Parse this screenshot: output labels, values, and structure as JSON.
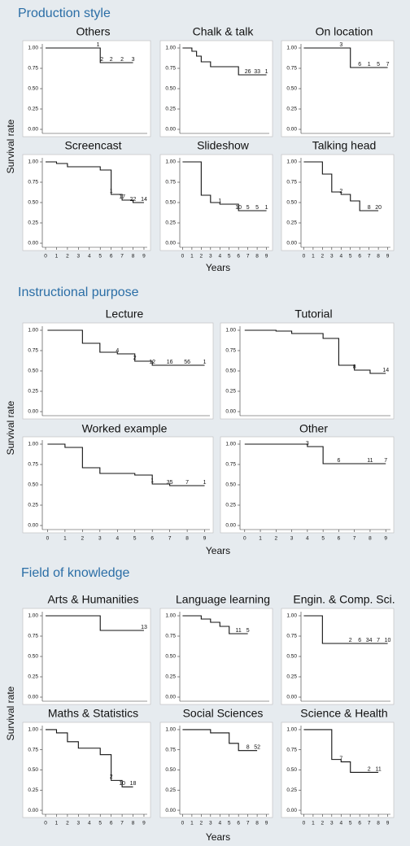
{
  "sections": [
    {
      "title": "Production style",
      "ylabel": "Survival rate",
      "xlabel": "Years"
    },
    {
      "title": "Instructional purpose",
      "ylabel": "Survival rate",
      "xlabel": "Years"
    },
    {
      "title": "Field of knowledge",
      "ylabel": "Survival rate",
      "xlabel": "Years"
    }
  ],
  "chart_data": [
    {
      "type": "step",
      "title": "Others",
      "x": [
        0,
        5,
        8
      ],
      "values": [
        1,
        0.82,
        0.82
      ],
      "censor_x": [
        4.8,
        5.15,
        6,
        7,
        8
      ],
      "censor_counts": [
        1,
        2,
        2,
        2,
        3
      ],
      "xlim": [
        -0.3,
        9.3
      ],
      "ylim": [
        -0.05,
        1.05
      ],
      "yticks": [
        {
          "value": 0,
          "label": "0.00"
        },
        {
          "value": 0.25,
          "label": "0.25"
        },
        {
          "value": 0.5,
          "label": "0.50"
        },
        {
          "value": 0.75,
          "label": "0.75"
        },
        {
          "value": 1,
          "label": "1.00"
        }
      ],
      "color": "#111111"
    },
    {
      "type": "step",
      "title": "Chalk & talk",
      "x": [
        0,
        1,
        1.5,
        2,
        3,
        6,
        9
      ],
      "values": [
        1,
        0.96,
        0.9,
        0.83,
        0.77,
        0.67,
        0.67
      ],
      "censor_x": [
        7,
        8,
        9
      ],
      "censor_counts": [
        26,
        33,
        1
      ],
      "xlim": [
        -0.3,
        9.3
      ],
      "ylim": [
        -0.05,
        1.05
      ],
      "yticks": [
        {
          "value": 0,
          "label": "0.00"
        },
        {
          "value": 0.25,
          "label": "0.25"
        },
        {
          "value": 0.5,
          "label": "0.50"
        },
        {
          "value": 0.75,
          "label": "0.75"
        },
        {
          "value": 1,
          "label": "1.00"
        }
      ],
      "color": "#111111"
    },
    {
      "type": "step",
      "title": "On location",
      "x": [
        0,
        5,
        9
      ],
      "values": [
        1,
        0.76,
        0.76
      ],
      "censor_x": [
        4,
        6,
        7,
        8,
        9
      ],
      "censor_counts": [
        3,
        6,
        1,
        5,
        7
      ],
      "xlim": [
        -0.3,
        9.3
      ],
      "ylim": [
        -0.05,
        1.05
      ],
      "yticks": [
        {
          "value": 0,
          "label": "0.00"
        },
        {
          "value": 0.25,
          "label": "0.25"
        },
        {
          "value": 0.5,
          "label": "0.50"
        },
        {
          "value": 0.75,
          "label": "0.75"
        },
        {
          "value": 1,
          "label": "1.00"
        }
      ],
      "color": "#111111"
    },
    {
      "type": "step",
      "title": "Screencast",
      "x": [
        0,
        1,
        2,
        5,
        6,
        7,
        8,
        9
      ],
      "values": [
        1,
        0.98,
        0.94,
        0.9,
        0.6,
        0.53,
        0.5,
        0.5
      ],
      "censor_x": [
        6,
        7,
        8,
        9
      ],
      "censor_counts": [
        1,
        17,
        22,
        14
      ],
      "xlim": [
        -0.3,
        9.3
      ],
      "ylim": [
        -0.05,
        1.05
      ],
      "yticks": [
        {
          "value": 0,
          "label": "0.00"
        },
        {
          "value": 0.25,
          "label": "0.25"
        },
        {
          "value": 0.5,
          "label": "0.50"
        },
        {
          "value": 0.75,
          "label": "0.75"
        },
        {
          "value": 1,
          "label": "1.00"
        }
      ],
      "xticks": [
        0,
        1,
        2,
        3,
        4,
        5,
        6,
        7,
        8,
        9
      ],
      "color": "#111111"
    },
    {
      "type": "step",
      "title": "Slideshow",
      "x": [
        0,
        2,
        3,
        4,
        6,
        9
      ],
      "values": [
        1,
        0.59,
        0.5,
        0.48,
        0.4,
        0.4
      ],
      "censor_x": [
        4,
        6,
        7,
        8,
        9
      ],
      "censor_counts": [
        1,
        10,
        5,
        5,
        1
      ],
      "xlim": [
        -0.3,
        9.3
      ],
      "ylim": [
        -0.05,
        1.05
      ],
      "yticks": [
        {
          "value": 0,
          "label": "0.00"
        },
        {
          "value": 0.25,
          "label": "0.25"
        },
        {
          "value": 0.5,
          "label": "0.50"
        },
        {
          "value": 0.75,
          "label": "0.75"
        },
        {
          "value": 1,
          "label": "1.00"
        }
      ],
      "xticks": [
        0,
        1,
        2,
        3,
        4,
        5,
        6,
        7,
        8,
        9
      ],
      "color": "#111111"
    },
    {
      "type": "step",
      "title": "Talking head",
      "x": [
        0,
        2,
        3,
        4,
        5,
        6,
        8
      ],
      "values": [
        1,
        0.85,
        0.63,
        0.6,
        0.52,
        0.4,
        0.4
      ],
      "censor_x": [
        4,
        7,
        8
      ],
      "censor_counts": [
        2,
        8,
        20
      ],
      "xlim": [
        -0.3,
        9.3
      ],
      "ylim": [
        -0.05,
        1.05
      ],
      "yticks": [
        {
          "value": 0,
          "label": "0.00"
        },
        {
          "value": 0.25,
          "label": "0.25"
        },
        {
          "value": 0.5,
          "label": "0.50"
        },
        {
          "value": 0.75,
          "label": "0.75"
        },
        {
          "value": 1,
          "label": "1.00"
        }
      ],
      "xticks": [
        0,
        1,
        2,
        3,
        4,
        5,
        6,
        7,
        8,
        9
      ],
      "color": "#111111"
    },
    {
      "type": "step",
      "title": "Lecture",
      "x": [
        0,
        2,
        3,
        4,
        5,
        6,
        9
      ],
      "values": [
        1,
        0.84,
        0.73,
        0.71,
        0.62,
        0.57,
        0.57
      ],
      "censor_x": [
        4,
        5,
        6,
        7,
        8,
        9
      ],
      "censor_counts": [
        4,
        2,
        12,
        16,
        56,
        1
      ],
      "xlim": [
        -0.3,
        9.3
      ],
      "ylim": [
        -0.05,
        1.05
      ],
      "yticks": [
        {
          "value": 0,
          "label": "0.00"
        },
        {
          "value": 0.25,
          "label": "0.25"
        },
        {
          "value": 0.5,
          "label": "0.50"
        },
        {
          "value": 0.75,
          "label": "0.75"
        },
        {
          "value": 1,
          "label": "1.00"
        }
      ],
      "color": "#111111"
    },
    {
      "type": "step",
      "title": "Tutorial",
      "x": [
        0,
        2,
        3,
        5,
        6,
        7,
        8,
        9
      ],
      "values": [
        1,
        0.99,
        0.96,
        0.9,
        0.57,
        0.51,
        0.47,
        0.47
      ],
      "censor_x": [
        7,
        9
      ],
      "censor_counts": [
        8,
        14
      ],
      "xlim": [
        -0.3,
        9.3
      ],
      "ylim": [
        -0.05,
        1.05
      ],
      "yticks": [
        {
          "value": 0,
          "label": "0.00"
        },
        {
          "value": 0.25,
          "label": "0.25"
        },
        {
          "value": 0.5,
          "label": "0.50"
        },
        {
          "value": 0.75,
          "label": "0.75"
        },
        {
          "value": 1,
          "label": "1.00"
        }
      ],
      "color": "#111111"
    },
    {
      "type": "step",
      "title": "Worked example",
      "x": [
        0,
        1,
        2,
        3,
        5,
        6,
        7,
        9
      ],
      "values": [
        1,
        0.96,
        0.71,
        0.64,
        0.62,
        0.51,
        0.49,
        0.49
      ],
      "censor_x": [
        6,
        7,
        8,
        9
      ],
      "censor_counts": [
        1,
        35,
        7,
        1
      ],
      "xlim": [
        -0.3,
        9.3
      ],
      "ylim": [
        -0.05,
        1.05
      ],
      "yticks": [
        {
          "value": 0,
          "label": "0.00"
        },
        {
          "value": 0.25,
          "label": "0.25"
        },
        {
          "value": 0.5,
          "label": "0.50"
        },
        {
          "value": 0.75,
          "label": "0.75"
        },
        {
          "value": 1,
          "label": "1.00"
        }
      ],
      "xticks": [
        0,
        1,
        2,
        3,
        4,
        5,
        6,
        7,
        8,
        9
      ],
      "color": "#111111"
    },
    {
      "type": "step",
      "title": "Other",
      "x": [
        0,
        4,
        5,
        9
      ],
      "values": [
        1,
        0.97,
        0.76,
        0.76
      ],
      "censor_x": [
        4,
        6,
        8,
        9
      ],
      "censor_counts": [
        3,
        6,
        11,
        7
      ],
      "xlim": [
        -0.3,
        9.3
      ],
      "ylim": [
        -0.05,
        1.05
      ],
      "yticks": [
        {
          "value": 0,
          "label": "0.00"
        },
        {
          "value": 0.25,
          "label": "0.25"
        },
        {
          "value": 0.5,
          "label": "0.50"
        },
        {
          "value": 0.75,
          "label": "0.75"
        },
        {
          "value": 1,
          "label": "1.00"
        }
      ],
      "xticks": [
        0,
        1,
        2,
        3,
        4,
        5,
        6,
        7,
        8,
        9
      ],
      "color": "#111111"
    },
    {
      "type": "step",
      "title": "Arts & Humanities",
      "x": [
        0,
        5,
        9
      ],
      "values": [
        1,
        0.82,
        0.82
      ],
      "censor_x": [
        9
      ],
      "censor_counts": [
        13
      ],
      "xlim": [
        -0.3,
        9.3
      ],
      "ylim": [
        -0.05,
        1.05
      ],
      "yticks": [
        {
          "value": 0,
          "label": "0.00"
        },
        {
          "value": 0.25,
          "label": "0.25"
        },
        {
          "value": 0.5,
          "label": "0.50"
        },
        {
          "value": 0.75,
          "label": "0.75"
        },
        {
          "value": 1,
          "label": "1.00"
        }
      ],
      "color": "#111111"
    },
    {
      "type": "step",
      "title": "Language learning",
      "x": [
        0,
        2,
        3,
        4,
        5,
        7
      ],
      "values": [
        1,
        0.96,
        0.92,
        0.87,
        0.78,
        0.78
      ],
      "censor_x": [
        6,
        7
      ],
      "censor_counts": [
        11,
        5
      ],
      "xlim": [
        -0.3,
        9.3
      ],
      "ylim": [
        -0.05,
        1.05
      ],
      "yticks": [
        {
          "value": 0,
          "label": "0.00"
        },
        {
          "value": 0.25,
          "label": "0.25"
        },
        {
          "value": 0.5,
          "label": "0.50"
        },
        {
          "value": 0.75,
          "label": "0.75"
        },
        {
          "value": 1,
          "label": "1.00"
        }
      ],
      "color": "#111111"
    },
    {
      "type": "step",
      "title": "Engin. & Comp. Sci.",
      "x": [
        0,
        2,
        9
      ],
      "values": [
        1,
        0.66,
        0.66
      ],
      "censor_x": [
        5,
        6,
        7,
        8,
        9
      ],
      "censor_counts": [
        2,
        6,
        34,
        7,
        10
      ],
      "xlim": [
        -0.3,
        9.3
      ],
      "ylim": [
        -0.05,
        1.05
      ],
      "yticks": [
        {
          "value": 0,
          "label": "0.00"
        },
        {
          "value": 0.25,
          "label": "0.25"
        },
        {
          "value": 0.5,
          "label": "0.50"
        },
        {
          "value": 0.75,
          "label": "0.75"
        },
        {
          "value": 1,
          "label": "1.00"
        }
      ],
      "color": "#111111"
    },
    {
      "type": "step",
      "title": "Maths & Statistics",
      "x": [
        0,
        1,
        2,
        3,
        5,
        6,
        7,
        8
      ],
      "values": [
        1,
        0.96,
        0.85,
        0.77,
        0.69,
        0.37,
        0.29,
        0.29
      ],
      "censor_x": [
        6,
        7,
        8
      ],
      "censor_counts": [
        2,
        10,
        18
      ],
      "xlim": [
        -0.3,
        9.3
      ],
      "ylim": [
        -0.05,
        1.05
      ],
      "yticks": [
        {
          "value": 0,
          "label": "0.00"
        },
        {
          "value": 0.25,
          "label": "0.25"
        },
        {
          "value": 0.5,
          "label": "0.50"
        },
        {
          "value": 0.75,
          "label": "0.75"
        },
        {
          "value": 1,
          "label": "1.00"
        }
      ],
      "xticks": [
        0,
        1,
        2,
        3,
        4,
        5,
        6,
        7,
        8,
        9
      ],
      "color": "#111111"
    },
    {
      "type": "step",
      "title": "Social Sciences",
      "x": [
        0,
        3,
        5,
        6,
        8
      ],
      "values": [
        1,
        0.96,
        0.83,
        0.74,
        0.74
      ],
      "censor_x": [
        7,
        8
      ],
      "censor_counts": [
        8,
        52
      ],
      "xlim": [
        -0.3,
        9.3
      ],
      "ylim": [
        -0.05,
        1.05
      ],
      "yticks": [
        {
          "value": 0,
          "label": "0.00"
        },
        {
          "value": 0.25,
          "label": "0.25"
        },
        {
          "value": 0.5,
          "label": "0.50"
        },
        {
          "value": 0.75,
          "label": "0.75"
        },
        {
          "value": 1,
          "label": "1.00"
        }
      ],
      "xticks": [
        0,
        1,
        2,
        3,
        4,
        5,
        6,
        7,
        8,
        9
      ],
      "color": "#111111"
    },
    {
      "type": "step",
      "title": "Science & Health",
      "x": [
        0,
        3,
        4,
        5,
        8
      ],
      "values": [
        1,
        0.63,
        0.6,
        0.47,
        0.47
      ],
      "censor_x": [
        4,
        7,
        8
      ],
      "censor_counts": [
        7,
        2,
        11
      ],
      "xlim": [
        -0.3,
        9.3
      ],
      "ylim": [
        -0.05,
        1.05
      ],
      "yticks": [
        {
          "value": 0,
          "label": "0.00"
        },
        {
          "value": 0.25,
          "label": "0.25"
        },
        {
          "value": 0.5,
          "label": "0.50"
        },
        {
          "value": 0.75,
          "label": "0.75"
        },
        {
          "value": 1,
          "label": "1.00"
        }
      ],
      "xticks": [
        0,
        1,
        2,
        3,
        4,
        5,
        6,
        7,
        8,
        9
      ],
      "color": "#111111"
    }
  ]
}
